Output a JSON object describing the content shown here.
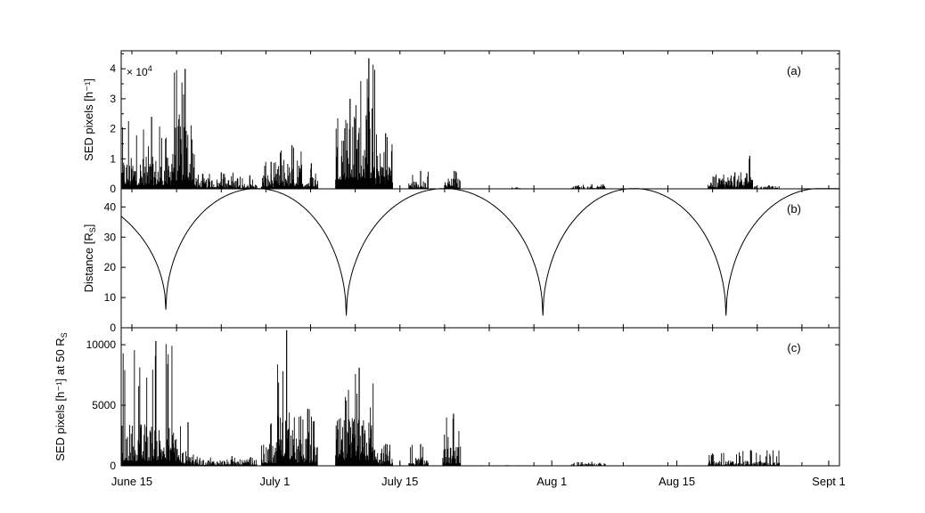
{
  "chart_data": [
    {
      "type": "bar",
      "panel_label": "(a)",
      "ylabel": "SED pixels [h⁻¹]",
      "yscale_base": "× 10",
      "yscale_exp": "4",
      "ylim": [
        0,
        4.6
      ],
      "yticks": [
        0,
        1,
        2,
        3,
        4
      ],
      "xlim": [
        -1.2,
        79.2
      ],
      "segments": [
        {
          "start": -1.1,
          "end": 4.4,
          "mean": 0.6,
          "peak": 2.4
        },
        {
          "start": 4.4,
          "end": 7.0,
          "mean": 1.4,
          "peak": 4.0
        },
        {
          "start": 7.0,
          "end": 12.0,
          "mean": 0.2,
          "peak": 0.55
        },
        {
          "start": 12.0,
          "end": 14.0,
          "mean": 0.1,
          "peak": 0.45
        },
        {
          "start": 14.5,
          "end": 16.3,
          "mean": 0.3,
          "peak": 0.9
        },
        {
          "start": 16.3,
          "end": 19.0,
          "mean": 0.45,
          "peak": 1.45
        },
        {
          "start": 19.0,
          "end": 20.8,
          "mean": 0.25,
          "peak": 0.85
        },
        {
          "start": 22.8,
          "end": 25.5,
          "mean": 1.5,
          "peak": 3.0
        },
        {
          "start": 25.5,
          "end": 27.2,
          "mean": 1.7,
          "peak": 4.35
        },
        {
          "start": 27.2,
          "end": 29.2,
          "mean": 0.8,
          "peak": 1.85
        },
        {
          "start": 31.0,
          "end": 33.2,
          "mean": 0.15,
          "peak": 0.6
        },
        {
          "start": 35.0,
          "end": 36.8,
          "mean": 0.2,
          "peak": 0.6
        },
        {
          "start": 42.5,
          "end": 43.5,
          "mean": 0.02,
          "peak": 0.05
        },
        {
          "start": 49.2,
          "end": 53.0,
          "mean": 0.05,
          "peak": 0.15
        },
        {
          "start": 64.5,
          "end": 69.5,
          "mean": 0.25,
          "peak": 0.55
        },
        {
          "start": 68.8,
          "end": 69.4,
          "mean": 0.6,
          "peak": 1.1
        },
        {
          "start": 69.5,
          "end": 72.5,
          "mean": 0.05,
          "peak": 0.12
        }
      ]
    },
    {
      "type": "line",
      "panel_label": "(b)",
      "ylabel": "Distance [R",
      "ylabel_sub": "S",
      "ylabel_close": "]",
      "ylim": [
        0,
        46
      ],
      "yticks": [
        0,
        10,
        20,
        30,
        40
      ],
      "xlim": [
        -1.2,
        79.2
      ],
      "orbit": {
        "apoapsis": 46.1,
        "start_value": 39.5,
        "periapses": [
          {
            "day": 3.8,
            "value": 6.0
          },
          {
            "day": 24.0,
            "value": 4.0
          },
          {
            "day": 46.0,
            "value": 4.0
          },
          {
            "day": 66.5,
            "value": 4.0
          }
        ],
        "apoapses": [
          14.0,
          35.0,
          56.2,
          77.0
        ]
      }
    },
    {
      "type": "bar",
      "panel_label": "(c)",
      "ylabel": "SED pixels [h⁻¹] at 50 R",
      "ylabel_sub": "S",
      "ylim": [
        0,
        11400
      ],
      "yticks": [
        0,
        5000,
        10000
      ],
      "xlim": [
        -1.2,
        79.2
      ],
      "xtick_days": [
        0,
        16,
        30,
        47,
        61,
        78
      ],
      "xtick_labels": [
        "June 15",
        "July 1",
        "July 15",
        "Aug 1",
        "Aug 15",
        "Sept 1"
      ],
      "segments": [
        {
          "start": -1.1,
          "end": 5.2,
          "mean": 2000,
          "peak": 10300
        },
        {
          "start": 5.2,
          "end": 7.0,
          "mean": 700,
          "peak": 3600
        },
        {
          "start": 7.0,
          "end": 14.0,
          "mean": 300,
          "peak": 800
        },
        {
          "start": 14.5,
          "end": 16.3,
          "mean": 1000,
          "peak": 3500
        },
        {
          "start": 16.3,
          "end": 18.0,
          "mean": 2500,
          "peak": 11200
        },
        {
          "start": 18.0,
          "end": 20.8,
          "mean": 1300,
          "peak": 4700
        },
        {
          "start": 22.8,
          "end": 27.2,
          "mean": 2200,
          "peak": 8100
        },
        {
          "start": 27.2,
          "end": 29.2,
          "mean": 600,
          "peak": 1800
        },
        {
          "start": 31.0,
          "end": 33.2,
          "mean": 400,
          "peak": 1800
        },
        {
          "start": 34.8,
          "end": 36.8,
          "mean": 900,
          "peak": 4300
        },
        {
          "start": 38.0,
          "end": 44.5,
          "mean": 10,
          "peak": 60
        },
        {
          "start": 49.2,
          "end": 53.0,
          "mean": 100,
          "peak": 320
        },
        {
          "start": 64.5,
          "end": 72.5,
          "mean": 250,
          "peak": 1300
        }
      ]
    }
  ]
}
